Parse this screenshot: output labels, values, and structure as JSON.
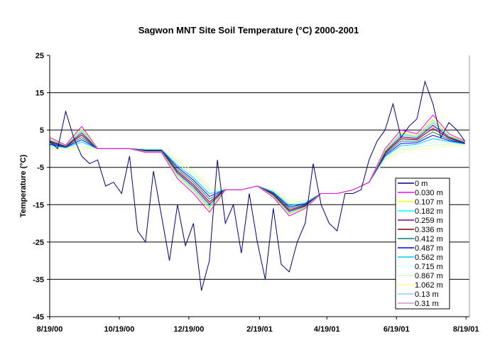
{
  "chart_data": {
    "type": "line",
    "title": "Sagwon MNT Site Soil Temperature (°C) 2000-2001",
    "xlabel": "",
    "ylabel": "Temperature (°C)",
    "ylim": [
      -45,
      25
    ],
    "yticks": [
      "25",
      "15",
      "5",
      "-5",
      "-15",
      "-25",
      "-35",
      "-45"
    ],
    "xlim": [
      "2000-08-19",
      "2001-08-22"
    ],
    "xticks": [
      {
        "label": "8/19/00",
        "date": "2000-08-19"
      },
      {
        "label": "10/19/00",
        "date": "2000-10-19"
      },
      {
        "label": "12/19/00",
        "date": "2000-12-19"
      },
      {
        "label": "2/19/01",
        "date": "2001-02-19"
      },
      {
        "label": "4/19/01",
        "date": "2001-04-19"
      },
      {
        "label": "6/19/01",
        "date": "2001-06-19"
      },
      {
        "label": "8/19/01",
        "date": "2001-08-19"
      }
    ],
    "grid": "horizontal major",
    "legend_position": "right-bottom inside",
    "x_start": "2000-08-19",
    "x_step_days_surface": 7,
    "x_step_days_subsurface": 14,
    "series": [
      {
        "name": "0 m",
        "color": "#000080",
        "values": [
          2,
          0,
          10,
          3,
          -2,
          -4,
          -3,
          -10,
          -9,
          -12,
          -2,
          -22,
          -25,
          -6,
          -18,
          -30,
          -15,
          -26,
          -20,
          -38,
          -30,
          -3,
          -20,
          -15,
          -28,
          -12,
          -25,
          -35,
          -16,
          -31,
          -33,
          -25,
          -20,
          -4,
          -15,
          -20,
          -22,
          -12,
          -12,
          -11,
          -3,
          2,
          5,
          12,
          3,
          6,
          8,
          18,
          12,
          3,
          7,
          5,
          2
        ]
      },
      {
        "name": "0.030 m",
        "color": "#ff00ff",
        "values": [
          3,
          1,
          6,
          0,
          0,
          0,
          -1,
          -1,
          -8,
          -12,
          -17,
          -11,
          -11,
          -10,
          -13,
          -18,
          -16,
          -12,
          -12,
          -11,
          -9,
          0,
          5,
          4,
          9,
          4,
          2
        ]
      },
      {
        "name": "0.107 m",
        "color": "#ffff00",
        "values": [
          2.6,
          0.9,
          5.3,
          0,
          0,
          0,
          -0.9,
          -0.9,
          -7.4,
          -11.3,
          -16.2,
          -11,
          -11,
          -10,
          -12.8,
          -17.5,
          -15.8,
          -12,
          -12,
          -11,
          -9,
          -0.4,
          4.3,
          3.5,
          7.9,
          3.6,
          1.9
        ]
      },
      {
        "name": "0.182 m",
        "color": "#00ffff",
        "values": [
          2.3,
          0.8,
          4.7,
          0,
          0,
          0,
          -0.8,
          -0.8,
          -6.9,
          -10.7,
          -15.5,
          -11,
          -11,
          -10,
          -12.6,
          -17.1,
          -15.6,
          -12,
          -12,
          -11,
          -9,
          -0.7,
          3.7,
          3.1,
          7,
          3.3,
          1.8
        ]
      },
      {
        "name": "0.259 m",
        "color": "#800080",
        "values": [
          2.1,
          0.7,
          4.2,
          0,
          0,
          0,
          -0.7,
          -0.7,
          -6.5,
          -10.2,
          -14.9,
          -11,
          -11,
          -10,
          -12.4,
          -16.8,
          -15.4,
          -12,
          -12,
          -11,
          -9,
          -0.9,
          3.2,
          2.8,
          6.3,
          3.1,
          1.7
        ]
      },
      {
        "name": "0.336 m",
        "color": "#800000",
        "values": [
          1.8,
          0.6,
          3.6,
          0,
          0,
          0,
          -0.6,
          -0.6,
          -6,
          -9.6,
          -14.2,
          -11,
          -11,
          -10,
          -12.2,
          -16.4,
          -15.2,
          -12,
          -12,
          -11,
          -9,
          -1.2,
          2.6,
          2.4,
          5.4,
          2.8,
          1.6
        ]
      },
      {
        "name": "0.412 m",
        "color": "#008080",
        "values": [
          1.5,
          0.5,
          3,
          0,
          0,
          0,
          -0.5,
          -0.5,
          -5.5,
          -9,
          -13.5,
          -11,
          -11,
          -10,
          -12,
          -16,
          -15,
          -12,
          -12,
          -11,
          -9,
          -1.5,
          2,
          2,
          4.5,
          2.5,
          1.5
        ]
      },
      {
        "name": "0.487 m",
        "color": "#0000ff",
        "values": [
          1.2,
          0.4,
          2.4,
          0,
          0,
          0,
          -0.4,
          -0.4,
          -5,
          -8.4,
          -12.8,
          -11,
          -11,
          -10,
          -11.8,
          -15.6,
          -14.8,
          -12,
          -12,
          -11,
          -9,
          -1.8,
          1.4,
          1.6,
          3.6,
          2.2,
          1.4
        ]
      },
      {
        "name": "0.562 m",
        "color": "#00ccff",
        "values": [
          0.9,
          0.3,
          1.8,
          0,
          0,
          0,
          -0.3,
          -0.3,
          -4.5,
          -7.8,
          -12.1,
          -11,
          -11,
          -10,
          -11.6,
          -15.2,
          -14.6,
          -12,
          -12,
          -11,
          -9,
          -2.1,
          0.8,
          1.2,
          2.7,
          1.9,
          1.3
        ]
      },
      {
        "name": "0.715 m",
        "color": "#ccffff",
        "values": [
          0.6,
          0.2,
          1.2,
          0,
          0,
          0,
          -0.2,
          -0.2,
          -4,
          -7.2,
          -11.4,
          -11,
          -11,
          -10,
          -11.4,
          -14.8,
          -14.4,
          -12,
          -12,
          -11,
          -9,
          -2.4,
          0.2,
          0.8,
          1.8,
          1.6,
          1.2
        ]
      },
      {
        "name": "0.867 m",
        "color": "#ccffcc",
        "values": [
          0.3,
          0.1,
          0.6,
          0,
          0,
          0,
          -0.1,
          -0.1,
          -3.5,
          -6.6,
          -10.7,
          -11,
          -11,
          -10,
          -11.2,
          -14.4,
          -14.2,
          -12,
          -12,
          -11,
          -9,
          -2.7,
          -0.4,
          0.4,
          0.9,
          1.3,
          1.1
        ]
      },
      {
        "name": "1.062 m",
        "color": "#ffff99",
        "values": [
          0,
          0,
          0,
          0,
          0,
          0,
          0,
          0,
          -3,
          -6,
          -10,
          -11,
          -11,
          -10,
          -11,
          -14,
          -14,
          -12,
          -12,
          -11,
          -9,
          -3,
          -1,
          0,
          0,
          1,
          1
        ]
      },
      {
        "name": "0.13 m",
        "color": "#99ccff",
        "values": [
          2.6,
          0.9,
          5.1,
          0,
          0,
          0,
          -0.9,
          -0.9,
          -7.3,
          -11.1,
          -16,
          -11,
          -11,
          -10,
          -12.7,
          -17.4,
          -15.7,
          -12,
          -12,
          -11,
          -9,
          -0.5,
          4.1,
          3.4,
          7.7,
          3.6,
          1.9
        ]
      },
      {
        "name": "0.31 m",
        "color": "#cc99cc",
        "values": [
          2,
          0.7,
          3.9,
          0,
          0,
          0,
          -0.7,
          -0.7,
          -6.3,
          -9.9,
          -14.6,
          -11,
          -11,
          -10,
          -12.3,
          -16.6,
          -15.3,
          -12,
          -12,
          -11,
          -9,
          -1.1,
          2.9,
          2.6,
          5.9,
          3,
          1.7
        ]
      }
    ]
  }
}
